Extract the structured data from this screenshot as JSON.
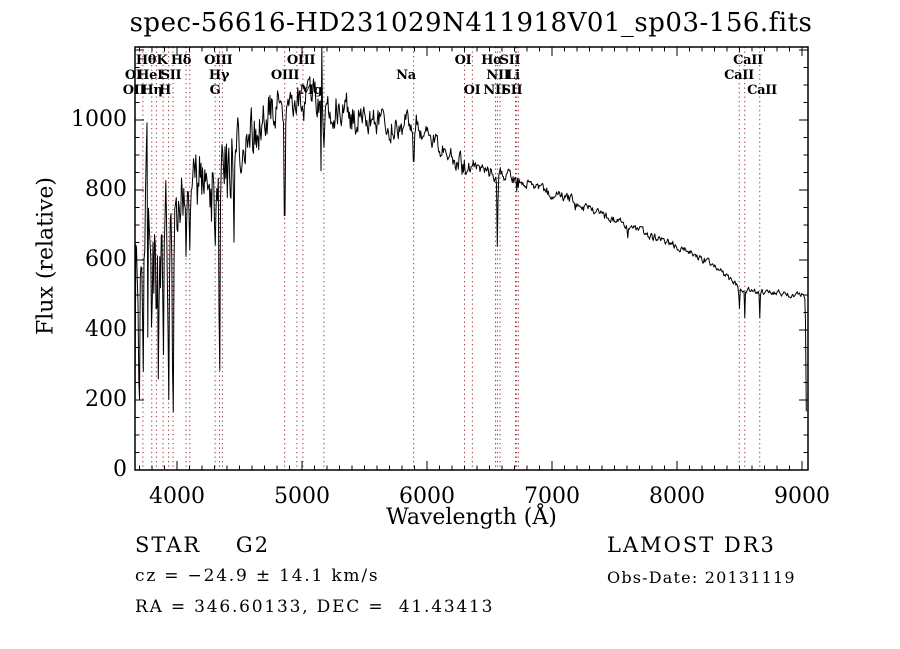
{
  "title": "spec-56616-HD231029N411918V01_sp03-156.fits",
  "footer": {
    "class_label": "STAR    G2",
    "cz_label": "cz = −24.9 ± 14.1 km/s",
    "radec_label": "RA = 346.60133, DEC =  41.43413",
    "survey_label": "LAMOST DR3",
    "obsdate_label": "Obs-Date: 20131119"
  },
  "colors": {
    "background": "#ffffff",
    "spectrum": "#000000",
    "frame": "#000000",
    "text": "#000000",
    "marker_line": "#993333"
  },
  "chart_data": {
    "type": "line",
    "title": "spec-56616-HD231029N411918V01_sp03-156.fits",
    "xlabel": "Wavelength (Å)",
    "ylabel": "Flux (relative)",
    "xlim": [
      3664,
      9048
    ],
    "ylim": [
      0,
      1208
    ],
    "grid": false,
    "x_major_ticks": [
      4000,
      5000,
      6000,
      7000,
      8000,
      9000
    ],
    "x_minor_step": 100,
    "y_major_ticks": [
      0,
      200,
      400,
      600,
      800,
      1000
    ],
    "y_minor_step": 50,
    "noise_seed": 20131119,
    "envelope_points": [
      [
        3664,
        90
      ],
      [
        3668,
        700
      ],
      [
        3674,
        320
      ],
      [
        3682,
        600
      ],
      [
        3692,
        500
      ],
      [
        3705,
        560
      ],
      [
        3725,
        620
      ],
      [
        3760,
        635
      ],
      [
        3800,
        665
      ],
      [
        3850,
        685
      ],
      [
        3900,
        715
      ],
      [
        3950,
        735
      ],
      [
        4000,
        770
      ],
      [
        4060,
        790
      ],
      [
        4120,
        805
      ],
      [
        4200,
        840
      ],
      [
        4300,
        868
      ],
      [
        4400,
        890
      ],
      [
        4500,
        928
      ],
      [
        4600,
        968
      ],
      [
        4700,
        1000
      ],
      [
        4800,
        1028
      ],
      [
        4900,
        1038
      ],
      [
        5000,
        1048
      ],
      [
        5100,
        1058
      ],
      [
        5160,
        1052
      ],
      [
        5250,
        1038
      ],
      [
        5350,
        1022
      ],
      [
        5450,
        1012
      ],
      [
        5550,
        1002
      ],
      [
        5650,
        988
      ],
      [
        5750,
        982
      ],
      [
        5850,
        986
      ],
      [
        5950,
        962
      ],
      [
        6050,
        938
      ],
      [
        6150,
        908
      ],
      [
        6250,
        882
      ],
      [
        6350,
        866
      ],
      [
        6450,
        852
      ],
      [
        6550,
        846
      ],
      [
        6650,
        842
      ],
      [
        6750,
        832
      ],
      [
        6850,
        814
      ],
      [
        6950,
        797
      ],
      [
        7050,
        784
      ],
      [
        7150,
        770
      ],
      [
        7250,
        750
      ],
      [
        7350,
        735
      ],
      [
        7450,
        720
      ],
      [
        7550,
        707
      ],
      [
        7650,
        692
      ],
      [
        7750,
        677
      ],
      [
        7850,
        660
      ],
      [
        7950,
        647
      ],
      [
        8050,
        630
      ],
      [
        8150,
        614
      ],
      [
        8250,
        594
      ],
      [
        8350,
        567
      ],
      [
        8450,
        534
      ],
      [
        8550,
        517
      ],
      [
        8650,
        510
      ],
      [
        8750,
        506
      ],
      [
        8850,
        504
      ],
      [
        8950,
        501
      ],
      [
        9000,
        504
      ],
      [
        9025,
        499
      ],
      [
        9031,
        360
      ],
      [
        9036,
        35
      ]
    ],
    "noise_bands": [
      [
        3664,
        3770,
        250
      ],
      [
        3770,
        3990,
        165
      ],
      [
        3990,
        4160,
        100
      ],
      [
        4160,
        4520,
        92
      ],
      [
        4520,
        4820,
        68
      ],
      [
        4820,
        5520,
        50
      ],
      [
        5520,
        5920,
        36
      ],
      [
        5920,
        6320,
        26
      ],
      [
        6320,
        6720,
        19
      ],
      [
        6720,
        7320,
        14
      ],
      [
        7320,
        8220,
        11
      ],
      [
        8220,
        9010,
        9
      ],
      [
        9010,
        9040,
        12
      ]
    ],
    "absorption_dips": [
      [
        3727,
        400,
        6
      ],
      [
        3798,
        380,
        6
      ],
      [
        3835,
        400,
        6
      ],
      [
        3889,
        420,
        6
      ],
      [
        3933,
        190,
        7
      ],
      [
        3968,
        115,
        7
      ],
      [
        4072,
        610,
        5
      ],
      [
        4102,
        630,
        6
      ],
      [
        4305,
        640,
        9
      ],
      [
        4340,
        215,
        6
      ],
      [
        4455,
        640,
        5
      ],
      [
        4861,
        640,
        6
      ],
      [
        5175,
        920,
        8
      ],
      [
        5893,
        855,
        6
      ],
      [
        6280,
        845,
        3
      ],
      [
        6563,
        630,
        5
      ],
      [
        6717,
        795,
        4
      ],
      [
        6731,
        805,
        3
      ],
      [
        7185,
        742,
        4
      ],
      [
        7605,
        662,
        5
      ],
      [
        8498,
        445,
        4
      ],
      [
        8542,
        435,
        4
      ],
      [
        8662,
        435,
        4
      ]
    ],
    "artifact_spike": {
      "wavelength": 5158,
      "peak": 1290,
      "adjacent_wavelength": 5152,
      "adjacent_floor": 855
    },
    "marker_lines": [
      3727,
      3798,
      3835,
      3889,
      3933,
      3968,
      4072,
      4102,
      4305,
      4340,
      4363,
      4861,
      4959,
      5007,
      5175,
      5893,
      6300,
      6363,
      6548,
      6563,
      6584,
      6708,
      6717,
      6731,
      8498,
      8542,
      8662
    ],
    "line_labels": [
      {
        "text": "Hθ",
        "row": 1,
        "wavelength": 3752
      },
      {
        "text": "K",
        "row": 1,
        "wavelength": 3880
      },
      {
        "text": "Hδ",
        "row": 1,
        "wavelength": 4032
      },
      {
        "text": "OIII",
        "row": 1,
        "wavelength": 4330
      },
      {
        "text": "OIII",
        "row": 1,
        "wavelength": 4992
      },
      {
        "text": "OI",
        "row": 1,
        "wavelength": 6288
      },
      {
        "text": "Hα",
        "row": 1,
        "wavelength": 6520
      },
      {
        "text": "SII",
        "row": 1,
        "wavelength": 6664
      },
      {
        "text": "CaII",
        "row": 1,
        "wavelength": 8568
      },
      {
        "text": "OI",
        "row": 2,
        "wavelength": 3650
      },
      {
        "text": "HeI",
        "row": 2,
        "wavelength": 3784
      },
      {
        "text": "SII",
        "row": 2,
        "wavelength": 3952
      },
      {
        "text": "Hγ",
        "row": 2,
        "wavelength": 4336
      },
      {
        "text": "OIII",
        "row": 2,
        "wavelength": 4864
      },
      {
        "text": "Na",
        "row": 2,
        "wavelength": 5832
      },
      {
        "text": "NII",
        "row": 2,
        "wavelength": 6568
      },
      {
        "text": "Li",
        "row": 2,
        "wavelength": 6688
      },
      {
        "text": "CaII",
        "row": 2,
        "wavelength": 8496
      },
      {
        "text": "OII",
        "row": 3,
        "wavelength": 3656
      },
      {
        "text": "Hη",
        "row": 3,
        "wavelength": 3800
      },
      {
        "text": "H",
        "row": 3,
        "wavelength": 3904
      },
      {
        "text": "G",
        "row": 3,
        "wavelength": 4304
      },
      {
        "text": "Mg",
        "row": 3,
        "wavelength": 5072
      },
      {
        "text": "OI",
        "row": 3,
        "wavelength": 6360
      },
      {
        "text": "NII",
        "row": 3,
        "wavelength": 6544
      },
      {
        "text": "SII",
        "row": 3,
        "wavelength": 6680
      },
      {
        "text": "CaII",
        "row": 3,
        "wavelength": 8680
      }
    ]
  }
}
